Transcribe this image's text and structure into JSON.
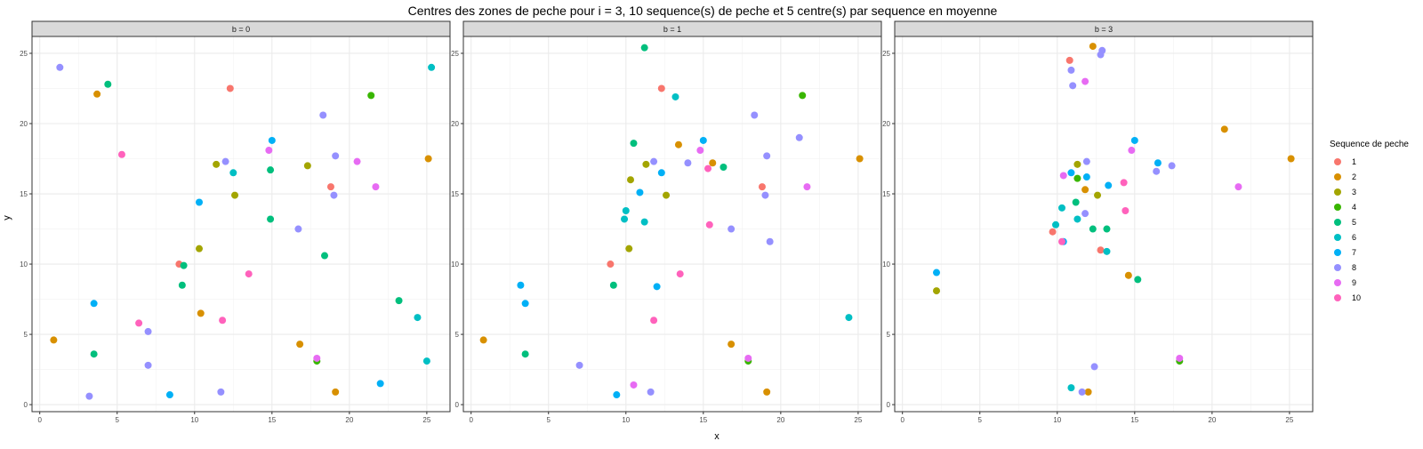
{
  "title": "Centres des zones de peche pour i = 3, 10 sequence(s) de peche et 5 centre(s) par sequence en moyenne",
  "xlabel": "x",
  "ylabel": "y",
  "legend": {
    "title": "Sequence de peche",
    "position": "right",
    "items": [
      {
        "label": "1",
        "color": "#F8766D"
      },
      {
        "label": "2",
        "color": "#D89000"
      },
      {
        "label": "3",
        "color": "#A3A500"
      },
      {
        "label": "4",
        "color": "#39B600"
      },
      {
        "label": "5",
        "color": "#00BF7D"
      },
      {
        "label": "6",
        "color": "#00BFC4"
      },
      {
        "label": "7",
        "color": "#00B0F6"
      },
      {
        "label": "8",
        "color": "#9590FF"
      },
      {
        "label": "9",
        "color": "#E76BF3"
      },
      {
        "label": "10",
        "color": "#FF62BC"
      }
    ]
  },
  "chart_data": {
    "type": "scatter",
    "facet_by": "b",
    "grid": true,
    "xlim": [
      -0.5,
      26.5
    ],
    "ylim": [
      -0.5,
      26.2
    ],
    "xticks": [
      0,
      5,
      10,
      15,
      20,
      25
    ],
    "yticks": [
      0,
      5,
      10,
      15,
      20,
      25
    ],
    "panels": [
      {
        "label": "b = 0",
        "series": [
          {
            "name": "1",
            "points": [
              [
                12.3,
                22.5
              ],
              [
                9.0,
                10.0
              ],
              [
                18.8,
                15.5
              ]
            ]
          },
          {
            "name": "2",
            "points": [
              [
                3.7,
                22.1
              ],
              [
                25.1,
                17.5
              ],
              [
                10.4,
                6.5
              ],
              [
                0.9,
                4.6
              ],
              [
                16.8,
                4.3
              ],
              [
                19.1,
                0.9
              ]
            ]
          },
          {
            "name": "3",
            "points": [
              [
                11.4,
                17.1
              ],
              [
                17.3,
                17.0
              ],
              [
                12.6,
                14.9
              ],
              [
                10.3,
                11.1
              ]
            ]
          },
          {
            "name": "4",
            "points": [
              [
                21.4,
                22.0
              ],
              [
                17.9,
                3.1
              ]
            ]
          },
          {
            "name": "5",
            "points": [
              [
                4.4,
                22.8
              ],
              [
                14.9,
                16.7
              ],
              [
                14.9,
                13.2
              ],
              [
                9.3,
                9.9
              ],
              [
                9.2,
                8.5
              ],
              [
                18.4,
                10.6
              ],
              [
                23.2,
                7.4
              ],
              [
                3.5,
                3.6
              ]
            ]
          },
          {
            "name": "6",
            "points": [
              [
                25.3,
                24.0
              ],
              [
                12.5,
                16.5
              ],
              [
                24.4,
                6.2
              ],
              [
                25.0,
                3.1
              ]
            ]
          },
          {
            "name": "7",
            "points": [
              [
                15.0,
                18.8
              ],
              [
                10.3,
                14.4
              ],
              [
                3.5,
                7.2
              ],
              [
                8.4,
                0.7
              ],
              [
                22.0,
                1.5
              ]
            ]
          },
          {
            "name": "8",
            "points": [
              [
                1.3,
                24.0
              ],
              [
                18.3,
                20.6
              ],
              [
                12.0,
                17.3
              ],
              [
                19.1,
                17.7
              ],
              [
                19.0,
                14.9
              ],
              [
                16.7,
                12.5
              ],
              [
                7.0,
                5.2
              ],
              [
                7.0,
                2.8
              ],
              [
                3.2,
                0.6
              ],
              [
                11.7,
                0.9
              ]
            ]
          },
          {
            "name": "9",
            "points": [
              [
                14.8,
                18.1
              ],
              [
                20.5,
                17.3
              ],
              [
                21.7,
                15.5
              ],
              [
                17.9,
                3.3
              ]
            ]
          },
          {
            "name": "10",
            "points": [
              [
                5.3,
                17.8
              ],
              [
                13.5,
                9.3
              ],
              [
                6.4,
                5.8
              ],
              [
                11.8,
                6.0
              ]
            ]
          }
        ]
      },
      {
        "label": "b = 1",
        "series": [
          {
            "name": "1",
            "points": [
              [
                12.3,
                22.5
              ],
              [
                9.0,
                10.0
              ],
              [
                18.8,
                15.5
              ]
            ]
          },
          {
            "name": "2",
            "points": [
              [
                13.4,
                18.5
              ],
              [
                15.6,
                17.2
              ],
              [
                25.1,
                17.5
              ],
              [
                0.8,
                4.6
              ],
              [
                16.8,
                4.3
              ],
              [
                19.1,
                0.9
              ]
            ]
          },
          {
            "name": "3",
            "points": [
              [
                11.3,
                17.1
              ],
              [
                10.3,
                16.0
              ],
              [
                12.6,
                14.9
              ],
              [
                10.2,
                11.1
              ]
            ]
          },
          {
            "name": "4",
            "points": [
              [
                21.4,
                22.0
              ],
              [
                17.9,
                3.1
              ]
            ]
          },
          {
            "name": "5",
            "points": [
              [
                11.2,
                25.4
              ],
              [
                10.5,
                18.6
              ],
              [
                16.3,
                16.9
              ],
              [
                9.2,
                8.5
              ],
              [
                3.5,
                3.6
              ]
            ]
          },
          {
            "name": "6",
            "points": [
              [
                13.2,
                21.9
              ],
              [
                10.0,
                13.8
              ],
              [
                9.9,
                13.2
              ],
              [
                11.2,
                13.0
              ],
              [
                24.4,
                6.2
              ]
            ]
          },
          {
            "name": "7",
            "points": [
              [
                15.0,
                18.8
              ],
              [
                12.3,
                16.5
              ],
              [
                10.9,
                15.1
              ],
              [
                3.2,
                8.5
              ],
              [
                3.5,
                7.2
              ],
              [
                12.0,
                8.4
              ],
              [
                9.4,
                0.7
              ]
            ]
          },
          {
            "name": "8",
            "points": [
              [
                18.3,
                20.6
              ],
              [
                21.2,
                19.0
              ],
              [
                11.8,
                17.3
              ],
              [
                14.0,
                17.2
              ],
              [
                19.1,
                17.7
              ],
              [
                19.0,
                14.9
              ],
              [
                16.8,
                12.5
              ],
              [
                19.3,
                11.6
              ],
              [
                7.0,
                2.8
              ],
              [
                11.6,
                0.9
              ]
            ]
          },
          {
            "name": "9",
            "points": [
              [
                14.8,
                18.1
              ],
              [
                21.7,
                15.5
              ],
              [
                17.9,
                3.3
              ],
              [
                10.5,
                1.4
              ]
            ]
          },
          {
            "name": "10",
            "points": [
              [
                15.3,
                16.8
              ],
              [
                15.4,
                12.8
              ],
              [
                13.5,
                9.3
              ],
              [
                11.8,
                6.0
              ]
            ]
          }
        ]
      },
      {
        "label": "b = 3",
        "series": [
          {
            "name": "1",
            "points": [
              [
                10.8,
                24.5
              ],
              [
                9.7,
                12.3
              ],
              [
                12.8,
                11.0
              ]
            ]
          },
          {
            "name": "2",
            "points": [
              [
                12.3,
                25.5
              ],
              [
                20.8,
                19.6
              ],
              [
                25.1,
                17.5
              ],
              [
                11.8,
                15.3
              ],
              [
                14.6,
                9.2
              ],
              [
                12.0,
                0.9
              ]
            ]
          },
          {
            "name": "3",
            "points": [
              [
                11.3,
                17.1
              ],
              [
                12.6,
                14.9
              ],
              [
                2.2,
                8.1
              ]
            ]
          },
          {
            "name": "4",
            "points": [
              [
                11.3,
                16.1
              ],
              [
                17.9,
                3.1
              ]
            ]
          },
          {
            "name": "5",
            "points": [
              [
                11.2,
                14.4
              ],
              [
                12.3,
                12.5
              ],
              [
                13.2,
                12.5
              ],
              [
                15.2,
                8.9
              ]
            ]
          },
          {
            "name": "6",
            "points": [
              [
                10.3,
                14.0
              ],
              [
                11.3,
                13.2
              ],
              [
                9.9,
                12.8
              ],
              [
                13.2,
                10.9
              ],
              [
                10.9,
                1.2
              ]
            ]
          },
          {
            "name": "7",
            "points": [
              [
                15.0,
                18.8
              ],
              [
                16.5,
                17.2
              ],
              [
                10.9,
                16.5
              ],
              [
                11.9,
                16.2
              ],
              [
                13.3,
                15.6
              ],
              [
                10.4,
                11.6
              ],
              [
                2.2,
                9.4
              ]
            ]
          },
          {
            "name": "8",
            "points": [
              [
                12.9,
                25.2
              ],
              [
                12.8,
                24.9
              ],
              [
                10.9,
                23.8
              ],
              [
                11.0,
                22.7
              ],
              [
                11.9,
                17.3
              ],
              [
                17.4,
                17.0
              ],
              [
                16.4,
                16.6
              ],
              [
                11.8,
                13.6
              ],
              [
                12.4,
                2.7
              ],
              [
                11.6,
                0.9
              ]
            ]
          },
          {
            "name": "9",
            "points": [
              [
                11.8,
                23.0
              ],
              [
                14.8,
                18.1
              ],
              [
                10.4,
                16.3
              ],
              [
                21.7,
                15.5
              ],
              [
                17.9,
                3.3
              ]
            ]
          },
          {
            "name": "10",
            "points": [
              [
                14.3,
                15.8
              ],
              [
                14.4,
                13.8
              ],
              [
                10.3,
                11.6
              ]
            ]
          }
        ]
      }
    ]
  }
}
